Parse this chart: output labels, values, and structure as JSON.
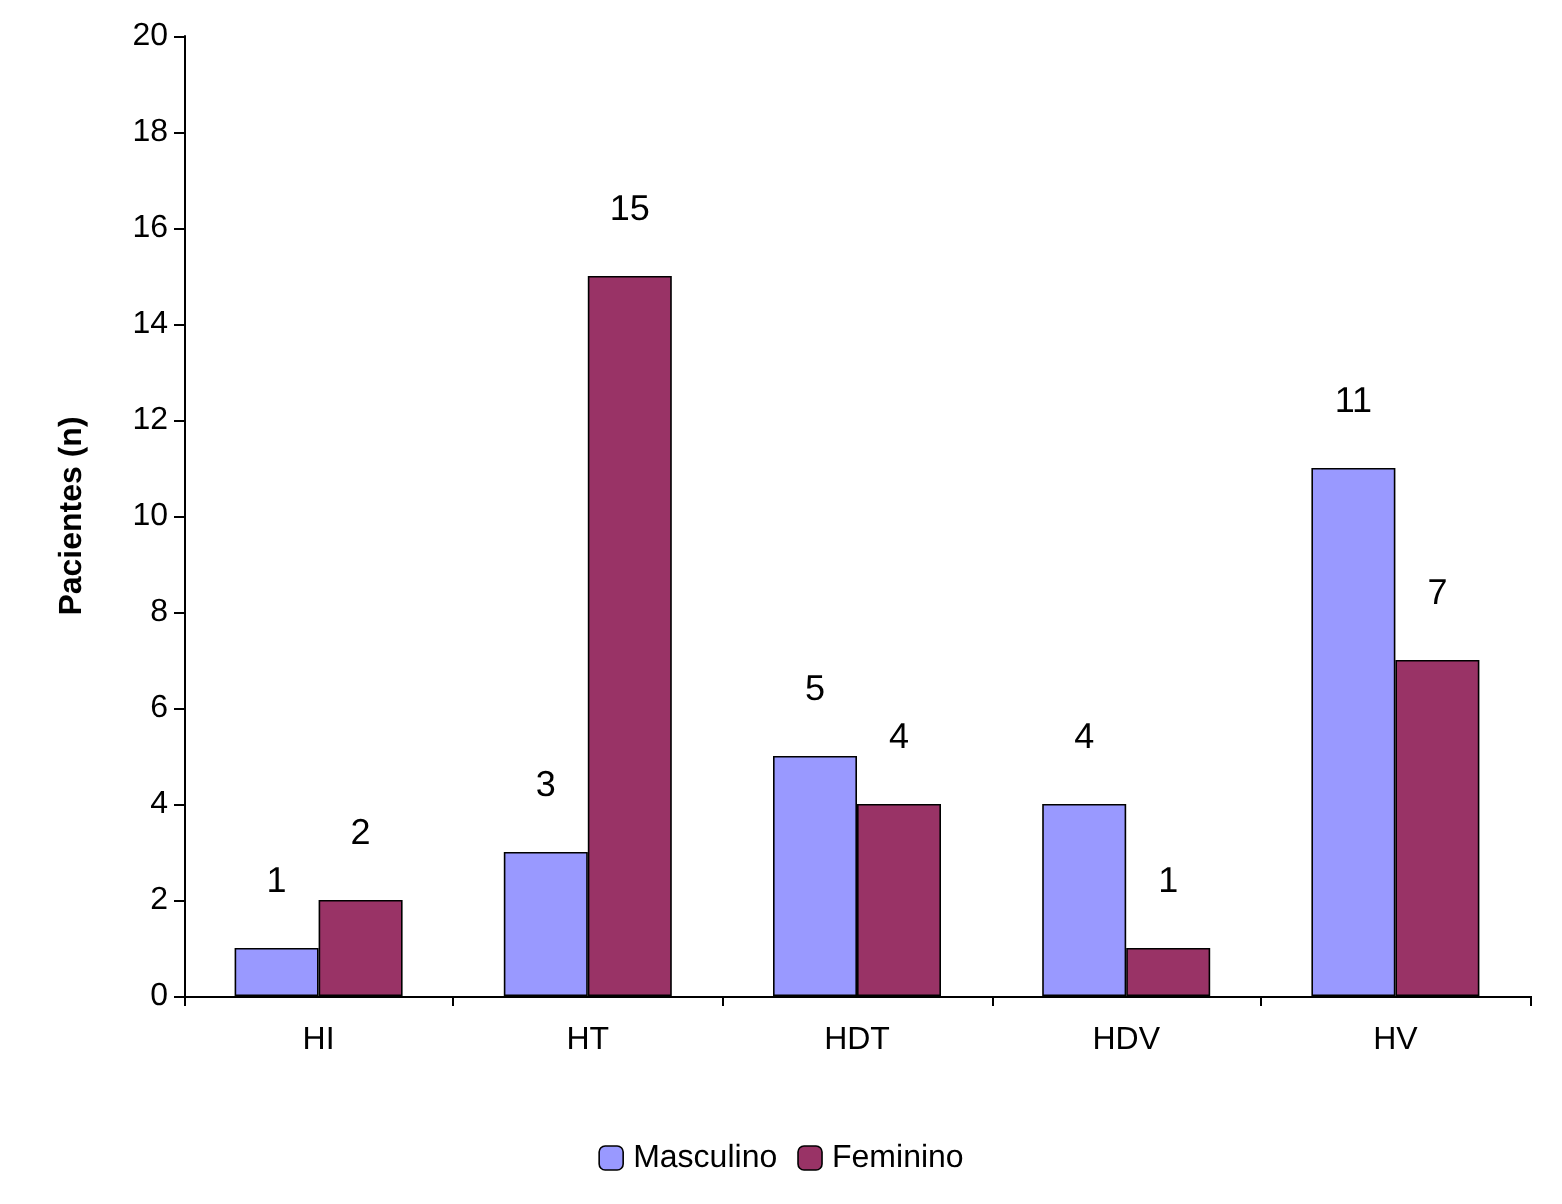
{
  "chart_data": {
    "type": "bar",
    "ylabel": "Pacientes (n)",
    "categories": [
      "HI",
      "HT",
      "HDT",
      "HDV",
      "HV"
    ],
    "series": [
      {
        "name": "Masculino",
        "color": "#9999ff",
        "values": [
          1,
          3,
          5,
          4,
          11
        ]
      },
      {
        "name": "Feminino",
        "color": "#993366",
        "values": [
          2,
          15,
          4,
          1,
          7
        ]
      }
    ],
    "ylim": [
      0,
      20
    ],
    "yticks": [
      0,
      2,
      4,
      6,
      8,
      10,
      12,
      14,
      16,
      18,
      20
    ],
    "grid": false,
    "legend": "bottom",
    "data_labels": true
  }
}
